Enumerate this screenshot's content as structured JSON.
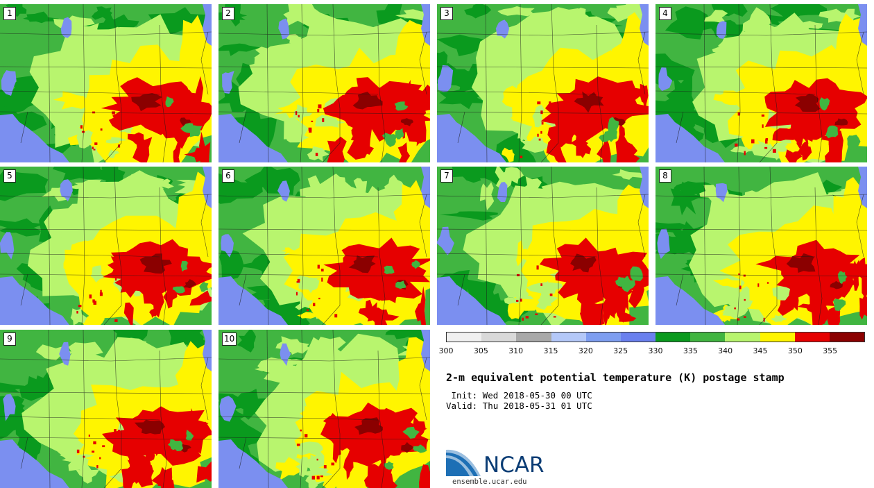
{
  "panels": [
    {
      "label": "1"
    },
    {
      "label": "2"
    },
    {
      "label": "3"
    },
    {
      "label": "4"
    },
    {
      "label": "5"
    },
    {
      "label": "6"
    },
    {
      "label": "7"
    },
    {
      "label": "8"
    },
    {
      "label": "9"
    },
    {
      "label": "10"
    }
  ],
  "colorbar": {
    "colors": [
      "#f0f0f0",
      "#d9d9d9",
      "#a8a8a8",
      "#b4c8f8",
      "#7e9ef0",
      "#6a80ee",
      "#0a9a1e",
      "#41b541",
      "#b8f56e",
      "#fff500",
      "#e60000",
      "#8b0000"
    ],
    "labels": [
      "300",
      "305",
      "310",
      "315",
      "320",
      "325",
      "330",
      "335",
      "340",
      "345",
      "350",
      "355"
    ]
  },
  "legend_colors": {
    "water": "#7b8ff0",
    "dark_green": "#0a9a1e",
    "medium_green": "#41b541",
    "light_green": "#b8f56e",
    "yellow": "#fff500",
    "red": "#e60000",
    "dark_red": "#8b0000"
  },
  "title": "2-m equivalent potential temperature (K) postage stamp",
  "init": " Init: Wed 2018-05-30 00 UTC",
  "valid": "Valid: Thu 2018-05-31 01 UTC",
  "logo": {
    "name": "NCAR",
    "url": "ensemble.ucar.edu"
  }
}
